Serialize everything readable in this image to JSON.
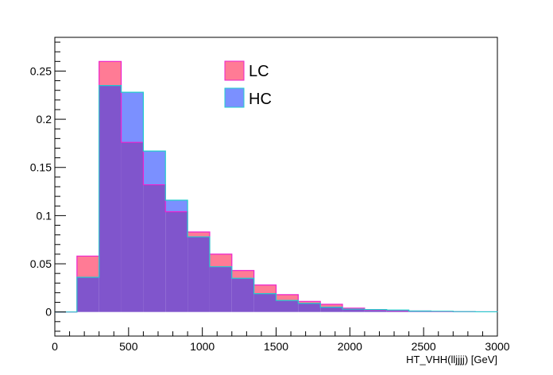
{
  "chart_data": {
    "type": "histogram",
    "title": "",
    "xlabel": "HT_VHH(lljjjj) [GeV]",
    "ylabel": "",
    "xlim": [
      0,
      3000
    ],
    "ylim": [
      -0.025,
      0.285
    ],
    "grid": false,
    "legend": {
      "placement": "top-center"
    },
    "bin_edges": [
      0,
      150,
      300,
      450,
      600,
      750,
      900,
      1050,
      1200,
      1350,
      1500,
      1650,
      1800,
      1950,
      2100,
      2250,
      2400,
      2550,
      2700,
      2850,
      3000
    ],
    "x_ticks": [
      0,
      500,
      1000,
      1500,
      2000,
      2500,
      3000
    ],
    "x_tick_labels": [
      "0",
      "500",
      "1000",
      "1500",
      "2000",
      "2500",
      "3000"
    ],
    "y_ticks": [
      0,
      0.05,
      0.1,
      0.15,
      0.2,
      0.25
    ],
    "y_tick_labels": [
      "0",
      "0.05",
      "0.1",
      "0.15",
      "0.2",
      "0.25"
    ],
    "series": [
      {
        "name": "LC",
        "color": "#ff7b95",
        "edge_color": "#ee22cc",
        "values": [
          0,
          0.058,
          0.26,
          0.176,
          0.132,
          0.104,
          0.083,
          0.06,
          0.043,
          0.028,
          0.018,
          0.011,
          0.008,
          0.004,
          0.002,
          0.0015,
          0.001,
          0.0005,
          0.0003,
          0.0002
        ]
      },
      {
        "name": "HC",
        "color": "#7b90ff",
        "edge_color": "#22cccc",
        "values": [
          0,
          0.036,
          0.235,
          0.228,
          0.167,
          0.116,
          0.078,
          0.047,
          0.035,
          0.019,
          0.012,
          0.009,
          0.005,
          0.003,
          0.0025,
          0.002,
          0.001,
          0.0008,
          0.0004,
          0.0002
        ]
      }
    ],
    "overlap_color": "#8055cc"
  }
}
